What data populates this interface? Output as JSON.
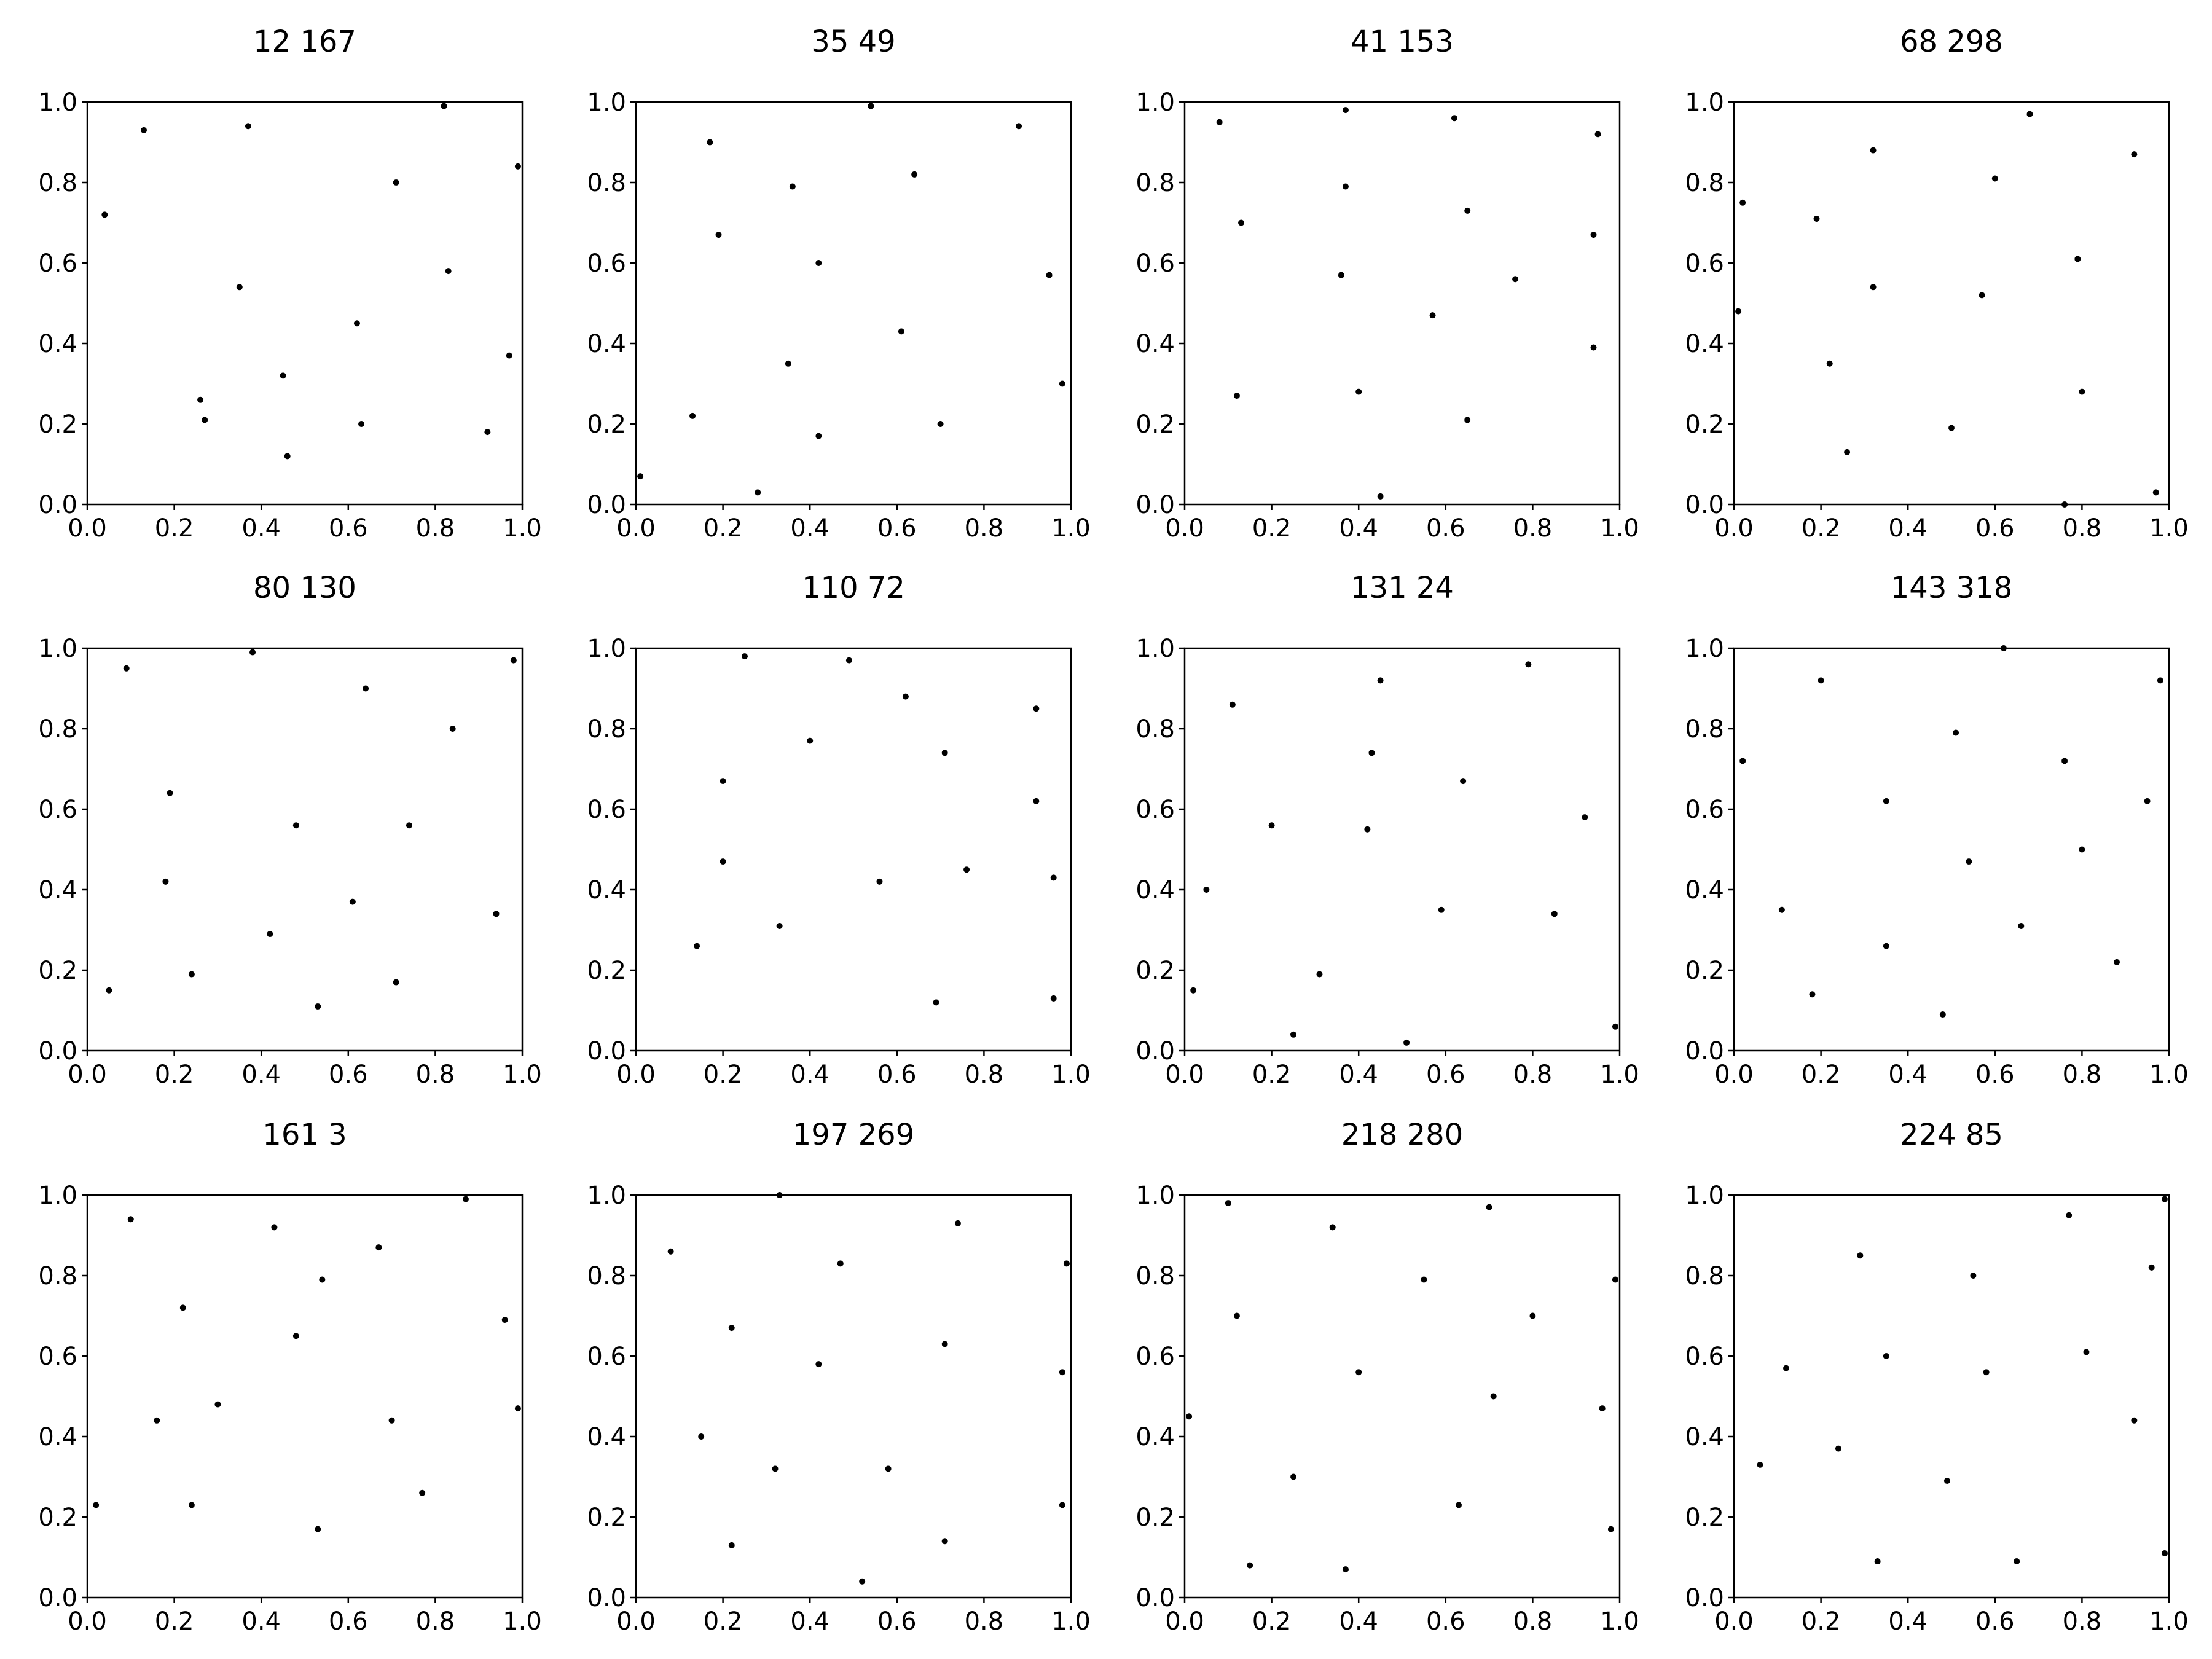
{
  "colors": {
    "background": "#ffffff",
    "axes": "#000000",
    "points": "#000000"
  },
  "chart_data": [
    {
      "type": "scatter",
      "title": "12 167",
      "xlim": [
        0,
        1
      ],
      "ylim": [
        0,
        1
      ],
      "xticks": [
        "0.0",
        "0.2",
        "0.4",
        "0.6",
        "0.8",
        "1.0"
      ],
      "yticks": [
        "0.0",
        "0.2",
        "0.4",
        "0.6",
        "0.8",
        "1.0"
      ],
      "grid": false,
      "points": [
        [
          0.04,
          0.72
        ],
        [
          0.13,
          0.93
        ],
        [
          0.37,
          0.94
        ],
        [
          0.82,
          0.99
        ],
        [
          0.99,
          0.84
        ],
        [
          0.71,
          0.8
        ],
        [
          0.35,
          0.54
        ],
        [
          0.83,
          0.58
        ],
        [
          0.62,
          0.45
        ],
        [
          0.97,
          0.37
        ],
        [
          0.26,
          0.26
        ],
        [
          0.45,
          0.32
        ],
        [
          0.27,
          0.21
        ],
        [
          0.63,
          0.2
        ],
        [
          0.92,
          0.18
        ],
        [
          0.46,
          0.12
        ]
      ]
    },
    {
      "type": "scatter",
      "title": "35 49",
      "xlim": [
        0,
        1
      ],
      "ylim": [
        0,
        1
      ],
      "xticks": [
        "0.0",
        "0.2",
        "0.4",
        "0.6",
        "0.8",
        "1.0"
      ],
      "yticks": [
        "0.0",
        "0.2",
        "0.4",
        "0.6",
        "0.8",
        "1.0"
      ],
      "grid": false,
      "points": [
        [
          0.54,
          0.99
        ],
        [
          0.17,
          0.9
        ],
        [
          0.88,
          0.94
        ],
        [
          0.64,
          0.82
        ],
        [
          0.36,
          0.79
        ],
        [
          0.19,
          0.67
        ],
        [
          0.42,
          0.6
        ],
        [
          0.95,
          0.57
        ],
        [
          0.61,
          0.43
        ],
        [
          0.35,
          0.35
        ],
        [
          0.98,
          0.3
        ],
        [
          0.13,
          0.22
        ],
        [
          0.7,
          0.2
        ],
        [
          0.42,
          0.17
        ],
        [
          0.01,
          0.07
        ],
        [
          0.28,
          0.03
        ]
      ]
    },
    {
      "type": "scatter",
      "title": "41 153",
      "xlim": [
        0,
        1
      ],
      "ylim": [
        0,
        1
      ],
      "xticks": [
        "0.0",
        "0.2",
        "0.4",
        "0.6",
        "0.8",
        "1.0"
      ],
      "yticks": [
        "0.0",
        "0.2",
        "0.4",
        "0.6",
        "0.8",
        "1.0"
      ],
      "grid": false,
      "points": [
        [
          0.08,
          0.95
        ],
        [
          0.37,
          0.98
        ],
        [
          0.62,
          0.96
        ],
        [
          0.95,
          0.92
        ],
        [
          0.37,
          0.79
        ],
        [
          0.13,
          0.7
        ],
        [
          0.65,
          0.73
        ],
        [
          0.94,
          0.67
        ],
        [
          0.36,
          0.57
        ],
        [
          0.76,
          0.56
        ],
        [
          0.57,
          0.47
        ],
        [
          0.94,
          0.39
        ],
        [
          0.12,
          0.27
        ],
        [
          0.4,
          0.28
        ],
        [
          0.65,
          0.21
        ],
        [
          0.45,
          0.02
        ]
      ]
    },
    {
      "type": "scatter",
      "title": "68 298",
      "xlim": [
        0,
        1
      ],
      "ylim": [
        0,
        1
      ],
      "xticks": [
        "0.0",
        "0.2",
        "0.4",
        "0.6",
        "0.8",
        "1.0"
      ],
      "yticks": [
        "0.0",
        "0.2",
        "0.4",
        "0.6",
        "0.8",
        "1.0"
      ],
      "grid": false,
      "points": [
        [
          0.68,
          0.97
        ],
        [
          0.32,
          0.88
        ],
        [
          0.92,
          0.87
        ],
        [
          0.02,
          0.75
        ],
        [
          0.6,
          0.81
        ],
        [
          0.19,
          0.71
        ],
        [
          0.79,
          0.61
        ],
        [
          0.32,
          0.54
        ],
        [
          0.57,
          0.52
        ],
        [
          0.01,
          0.48
        ],
        [
          0.22,
          0.35
        ],
        [
          0.8,
          0.28
        ],
        [
          0.5,
          0.19
        ],
        [
          0.26,
          0.13
        ],
        [
          0.76,
          0.0
        ],
        [
          0.97,
          0.03
        ]
      ]
    },
    {
      "type": "scatter",
      "title": "80 130",
      "xlim": [
        0,
        1
      ],
      "ylim": [
        0,
        1
      ],
      "xticks": [
        "0.0",
        "0.2",
        "0.4",
        "0.6",
        "0.8",
        "1.0"
      ],
      "yticks": [
        "0.0",
        "0.2",
        "0.4",
        "0.6",
        "0.8",
        "1.0"
      ],
      "grid": false,
      "points": [
        [
          0.09,
          0.95
        ],
        [
          0.38,
          0.99
        ],
        [
          0.98,
          0.97
        ],
        [
          0.64,
          0.9
        ],
        [
          0.84,
          0.8
        ],
        [
          0.19,
          0.64
        ],
        [
          0.48,
          0.56
        ],
        [
          0.74,
          0.56
        ],
        [
          0.18,
          0.42
        ],
        [
          0.61,
          0.37
        ],
        [
          0.94,
          0.34
        ],
        [
          0.42,
          0.29
        ],
        [
          0.05,
          0.15
        ],
        [
          0.24,
          0.19
        ],
        [
          0.71,
          0.17
        ],
        [
          0.53,
          0.11
        ]
      ]
    },
    {
      "type": "scatter",
      "title": "110 72",
      "xlim": [
        0,
        1
      ],
      "ylim": [
        0,
        1
      ],
      "xticks": [
        "0.0",
        "0.2",
        "0.4",
        "0.6",
        "0.8",
        "1.0"
      ],
      "yticks": [
        "0.0",
        "0.2",
        "0.4",
        "0.6",
        "0.8",
        "1.0"
      ],
      "grid": false,
      "points": [
        [
          0.25,
          0.98
        ],
        [
          0.49,
          0.97
        ],
        [
          0.62,
          0.88
        ],
        [
          0.92,
          0.85
        ],
        [
          0.4,
          0.77
        ],
        [
          0.71,
          0.74
        ],
        [
          0.2,
          0.67
        ],
        [
          0.92,
          0.62
        ],
        [
          0.2,
          0.47
        ],
        [
          0.56,
          0.42
        ],
        [
          0.76,
          0.45
        ],
        [
          0.96,
          0.43
        ],
        [
          0.33,
          0.31
        ],
        [
          0.14,
          0.26
        ],
        [
          0.69,
          0.12
        ],
        [
          0.96,
          0.13
        ]
      ]
    },
    {
      "type": "scatter",
      "title": "131 24",
      "xlim": [
        0,
        1
      ],
      "ylim": [
        0,
        1
      ],
      "xticks": [
        "0.0",
        "0.2",
        "0.4",
        "0.6",
        "0.8",
        "1.0"
      ],
      "yticks": [
        "0.0",
        "0.2",
        "0.4",
        "0.6",
        "0.8",
        "1.0"
      ],
      "grid": false,
      "points": [
        [
          0.79,
          0.96
        ],
        [
          0.45,
          0.92
        ],
        [
          0.11,
          0.86
        ],
        [
          0.43,
          0.74
        ],
        [
          0.64,
          0.67
        ],
        [
          0.92,
          0.58
        ],
        [
          0.2,
          0.56
        ],
        [
          0.42,
          0.55
        ],
        [
          0.05,
          0.4
        ],
        [
          0.59,
          0.35
        ],
        [
          0.85,
          0.34
        ],
        [
          0.31,
          0.19
        ],
        [
          0.02,
          0.15
        ],
        [
          0.25,
          0.04
        ],
        [
          0.51,
          0.02
        ],
        [
          0.99,
          0.06
        ]
      ]
    },
    {
      "type": "scatter",
      "title": "143 318",
      "xlim": [
        0,
        1
      ],
      "ylim": [
        0,
        1
      ],
      "xticks": [
        "0.0",
        "0.2",
        "0.4",
        "0.6",
        "0.8",
        "1.0"
      ],
      "yticks": [
        "0.0",
        "0.2",
        "0.4",
        "0.6",
        "0.8",
        "1.0"
      ],
      "grid": false,
      "points": [
        [
          0.62,
          1.0
        ],
        [
          0.2,
          0.92
        ],
        [
          0.98,
          0.92
        ],
        [
          0.51,
          0.79
        ],
        [
          0.02,
          0.72
        ],
        [
          0.76,
          0.72
        ],
        [
          0.35,
          0.62
        ],
        [
          0.95,
          0.62
        ],
        [
          0.8,
          0.5
        ],
        [
          0.54,
          0.47
        ],
        [
          0.11,
          0.35
        ],
        [
          0.66,
          0.31
        ],
        [
          0.35,
          0.26
        ],
        [
          0.88,
          0.22
        ],
        [
          0.18,
          0.14
        ],
        [
          0.48,
          0.09
        ]
      ]
    },
    {
      "type": "scatter",
      "title": "161 3",
      "xlim": [
        0,
        1
      ],
      "ylim": [
        0,
        1
      ],
      "xticks": [
        "0.0",
        "0.2",
        "0.4",
        "0.6",
        "0.8",
        "1.0"
      ],
      "yticks": [
        "0.0",
        "0.2",
        "0.4",
        "0.6",
        "0.8",
        "1.0"
      ],
      "grid": false,
      "points": [
        [
          0.1,
          0.94
        ],
        [
          0.43,
          0.92
        ],
        [
          0.87,
          0.99
        ],
        [
          0.67,
          0.87
        ],
        [
          0.54,
          0.79
        ],
        [
          0.22,
          0.72
        ],
        [
          0.96,
          0.69
        ],
        [
          0.48,
          0.65
        ],
        [
          0.3,
          0.48
        ],
        [
          0.99,
          0.47
        ],
        [
          0.16,
          0.44
        ],
        [
          0.7,
          0.44
        ],
        [
          0.77,
          0.26
        ],
        [
          0.02,
          0.23
        ],
        [
          0.24,
          0.23
        ],
        [
          0.53,
          0.17
        ]
      ]
    },
    {
      "type": "scatter",
      "title": "197 269",
      "xlim": [
        0,
        1
      ],
      "ylim": [
        0,
        1
      ],
      "xticks": [
        "0.0",
        "0.2",
        "0.4",
        "0.6",
        "0.8",
        "1.0"
      ],
      "yticks": [
        "0.0",
        "0.2",
        "0.4",
        "0.6",
        "0.8",
        "1.0"
      ],
      "grid": false,
      "points": [
        [
          0.33,
          1.0
        ],
        [
          0.08,
          0.86
        ],
        [
          0.74,
          0.93
        ],
        [
          0.47,
          0.83
        ],
        [
          0.99,
          0.83
        ],
        [
          0.22,
          0.67
        ],
        [
          0.71,
          0.63
        ],
        [
          0.42,
          0.58
        ],
        [
          0.98,
          0.56
        ],
        [
          0.15,
          0.4
        ],
        [
          0.32,
          0.32
        ],
        [
          0.58,
          0.32
        ],
        [
          0.98,
          0.23
        ],
        [
          0.22,
          0.13
        ],
        [
          0.71,
          0.14
        ],
        [
          0.52,
          0.04
        ]
      ]
    },
    {
      "type": "scatter",
      "title": "218 280",
      "xlim": [
        0,
        1
      ],
      "ylim": [
        0,
        1
      ],
      "xticks": [
        "0.0",
        "0.2",
        "0.4",
        "0.6",
        "0.8",
        "1.0"
      ],
      "yticks": [
        "0.0",
        "0.2",
        "0.4",
        "0.6",
        "0.8",
        "1.0"
      ],
      "grid": false,
      "points": [
        [
          0.1,
          0.98
        ],
        [
          0.34,
          0.92
        ],
        [
          0.7,
          0.97
        ],
        [
          0.99,
          0.79
        ],
        [
          0.55,
          0.79
        ],
        [
          0.12,
          0.7
        ],
        [
          0.8,
          0.7
        ],
        [
          0.4,
          0.56
        ],
        [
          0.01,
          0.45
        ],
        [
          0.71,
          0.5
        ],
        [
          0.96,
          0.47
        ],
        [
          0.25,
          0.3
        ],
        [
          0.63,
          0.23
        ],
        [
          0.98,
          0.17
        ],
        [
          0.15,
          0.08
        ],
        [
          0.37,
          0.07
        ]
      ]
    },
    {
      "type": "scatter",
      "title": "224 85",
      "xlim": [
        0,
        1
      ],
      "ylim": [
        0,
        1
      ],
      "xticks": [
        "0.0",
        "0.2",
        "0.4",
        "0.6",
        "0.8",
        "1.0"
      ],
      "yticks": [
        "0.0",
        "0.2",
        "0.4",
        "0.6",
        "0.8",
        "1.0"
      ],
      "grid": false,
      "points": [
        [
          0.77,
          0.95
        ],
        [
          0.99,
          0.99
        ],
        [
          0.29,
          0.85
        ],
        [
          0.55,
          0.8
        ],
        [
          0.96,
          0.82
        ],
        [
          0.12,
          0.57
        ],
        [
          0.35,
          0.6
        ],
        [
          0.58,
          0.56
        ],
        [
          0.81,
          0.61
        ],
        [
          0.24,
          0.37
        ],
        [
          0.92,
          0.44
        ],
        [
          0.06,
          0.33
        ],
        [
          0.49,
          0.29
        ],
        [
          0.33,
          0.09
        ],
        [
          0.65,
          0.09
        ],
        [
          0.99,
          0.11
        ]
      ]
    }
  ]
}
